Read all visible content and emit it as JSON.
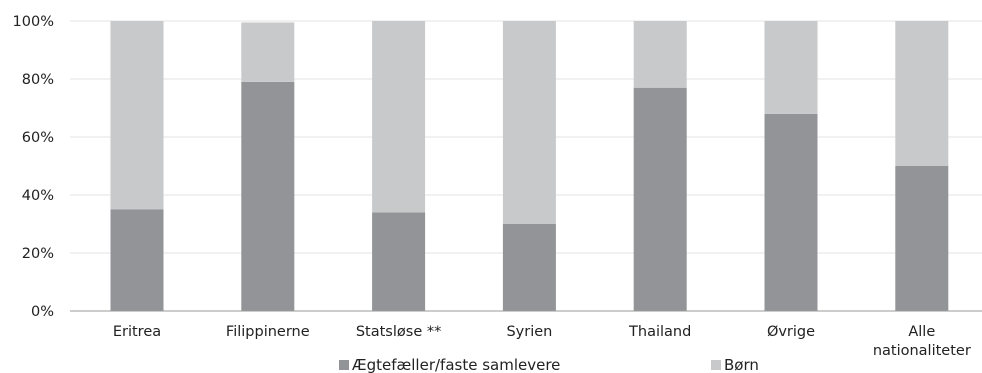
{
  "chart_data": {
    "type": "bar",
    "stacked": true,
    "normalized": true,
    "title": "",
    "xlabel": "",
    "ylabel": "",
    "categories": [
      [
        "Eritrea"
      ],
      [
        "Filippinerne"
      ],
      [
        "Statsløse **"
      ],
      [
        "Syrien"
      ],
      [
        "Thailand"
      ],
      [
        "Øvrige"
      ],
      [
        "Alle",
        "nationaliteter"
      ]
    ],
    "series": [
      {
        "name": "Ægtefæller/faste samlevere",
        "color": "#939497",
        "values": [
          35,
          79,
          34,
          30,
          77,
          68,
          50
        ]
      },
      {
        "name": "Børn",
        "color": "#c8c9cb",
        "values": [
          65,
          20.5,
          66,
          70,
          23,
          32,
          50
        ]
      }
    ],
    "ylim": [
      0,
      100
    ],
    "yticks": [
      "0%",
      "20%",
      "40%",
      "60%",
      "80%",
      "100%"
    ],
    "grid": true,
    "gridlines": "horizontal",
    "grid_color": "#e3e3e3",
    "axis_color": "#9a9a9a",
    "legend_position": "bottom"
  }
}
